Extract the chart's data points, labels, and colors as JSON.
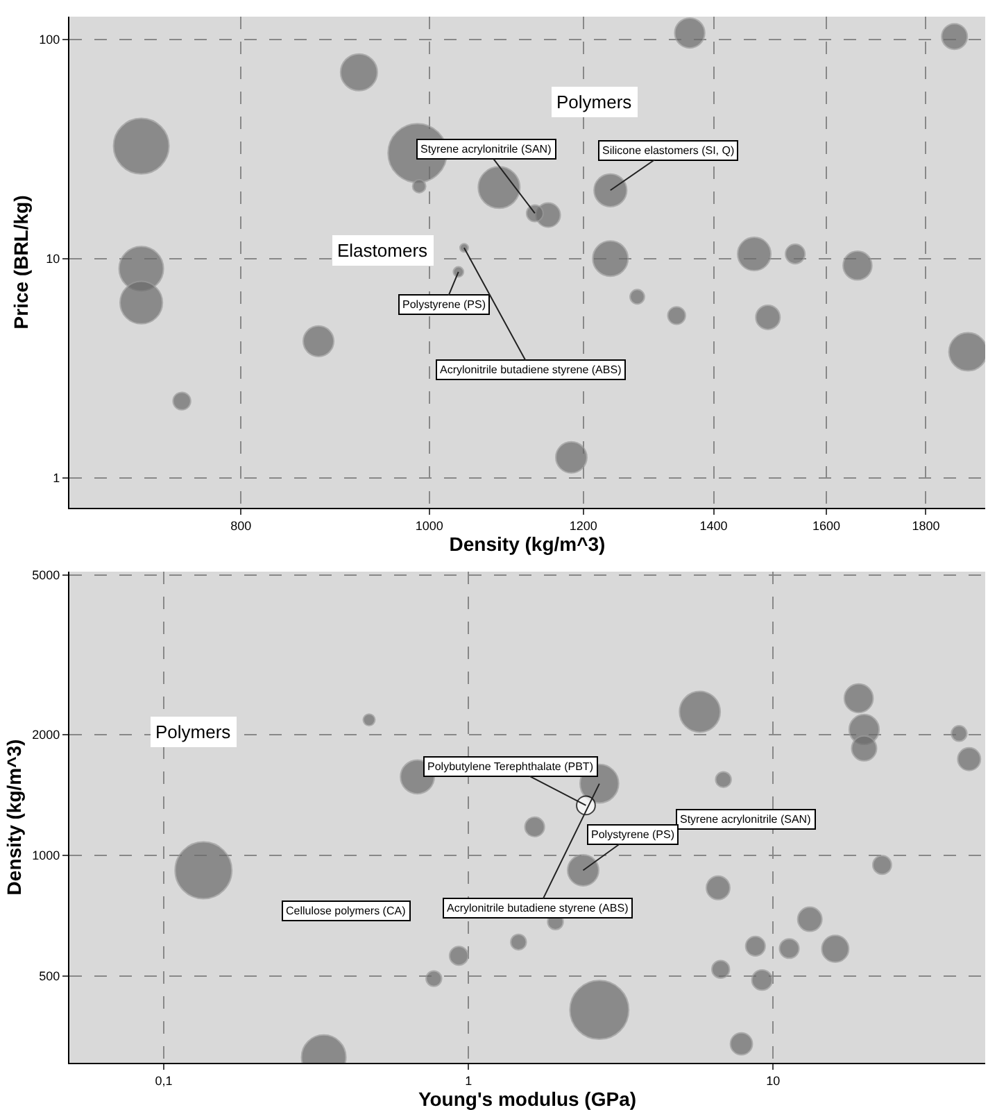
{
  "chart_data": [
    {
      "type": "bubble",
      "xlabel": "Density (kg/m^3)",
      "ylabel": "Price (BRL/kg)",
      "log": "xy",
      "grid": true,
      "marker": "circle",
      "xlim": [
        653,
        1931
      ],
      "ylim": [
        0.73,
        127
      ],
      "xticks": [
        800,
        1000,
        1200,
        1400,
        1600,
        1800
      ],
      "yticks": [
        1,
        10,
        100
      ],
      "series": [
        {
          "color": "#6a6a6a",
          "x": [
            920,
            986,
            711,
            711,
            711,
            877,
            746,
            1183,
            1086,
            988,
            1151,
            1239,
            1469,
            1542,
            1493,
            1279,
            1340,
            1862,
            1361,
            1892,
            1042,
            1133,
            1239,
            1660,
            1035
          ],
          "values": [
            70.8,
            30.3,
            32.6,
            9.0,
            6.3,
            4.2,
            2.24,
            1.24,
            21.1,
            21.4,
            15.8,
            10,
            10.5,
            10.5,
            5.4,
            6.7,
            5.5,
            103,
            107,
            3.76,
            11.2,
            16.1,
            20.5,
            9.3,
            8.7
          ],
          "sizes": [
            0.39,
            1,
            0.89,
            0.57,
            0.52,
            0.27,
            0.09,
            0.28,
            0.5,
            0.05,
            0.17,
            0.36,
            0.32,
            0.11,
            0.17,
            0.06,
            0.09,
            0.19,
            0.26,
            0.42,
            0.02,
            0.08,
            0.31,
            0.24,
            0.03
          ]
        }
      ],
      "annotations": [
        "Polymers",
        "Elastomers",
        {
          "text": "Styrene acrylonitrile (SAN)",
          "x": 1133,
          "y": 16.1
        },
        {
          "text": "Silicone elastomers (SI, Q)",
          "x": 1239,
          "y": 20.5
        },
        {
          "text": "Polystyrene (PS)",
          "x": 1035,
          "y": 8.7
        },
        {
          "text": "Acrylonitrile butadiene styrene (ABS)",
          "x": 1042,
          "y": 11.2
        }
      ]
    },
    {
      "type": "bubble",
      "xlabel": "Young's modulus (GPa)",
      "ylabel": "Density (kg/m^3)",
      "log": "xy",
      "grid": true,
      "marker": "circle",
      "xlim": [
        0.049,
        49.7
      ],
      "ylim": [
        304,
        5100
      ],
      "xticks": [
        {
          "value": 0.1,
          "label": "0,1"
        },
        1,
        10
      ],
      "yticks": [
        500,
        1000,
        2000,
        5000
      ],
      "series": [
        {
          "color": "#6a6a6a",
          "x": [
            0.135,
            0.472,
            0.68,
            1.65,
            2.69,
            5.75,
            19.1,
            19.9,
            19.9,
            6.87,
            2.38,
            1.46,
            1.93,
            0.77,
            0.93,
            0.335,
            2.69,
            6.73,
            9.2,
            8.75,
            11.3,
            13.2,
            16.0,
            22.8,
            7.87,
            40.8,
            44,
            6.6
          ],
          "values": [
            918,
            2178,
            1570,
            1178,
            1510,
            2281,
            2466,
            2061,
            1849,
            1546,
            918,
            608,
            683,
            493,
            562,
            314,
            412,
            520,
            489,
            594,
            586,
            693,
            585,
            947,
            339,
            2014,
            1738,
            830
          ],
          "sizes": [
            0.93,
            0.04,
            0.33,
            0.11,
            0.43,
            0.48,
            0.24,
            0.26,
            0.18,
            0.07,
            0.28,
            0.07,
            0.07,
            0.07,
            0.1,
            0.57,
            1,
            0.09,
            0.12,
            0.11,
            0.11,
            0.17,
            0.21,
            0.1,
            0.14,
            0.07,
            0.15,
            0.16
          ]
        },
        {
          "color": "#ffffff",
          "x": [
            2.43
          ],
          "values": [
            1333
          ],
          "sizes": [
            0.1
          ]
        }
      ],
      "annotations": [
        "Polymers",
        {
          "text": "Polybutylene Terephthalate (PBT)",
          "x": 2.43,
          "y": 1333
        },
        "Styrene acrylonitrile (SAN)",
        {
          "text": "Polystyrene (PS)",
          "x": 2.38,
          "y": 918
        },
        {
          "text": "Acrylonitrile butadiene styrene (ABS)",
          "x": 2.69,
          "y": 1510
        },
        "Cellulose polymers (CA)"
      ]
    }
  ]
}
